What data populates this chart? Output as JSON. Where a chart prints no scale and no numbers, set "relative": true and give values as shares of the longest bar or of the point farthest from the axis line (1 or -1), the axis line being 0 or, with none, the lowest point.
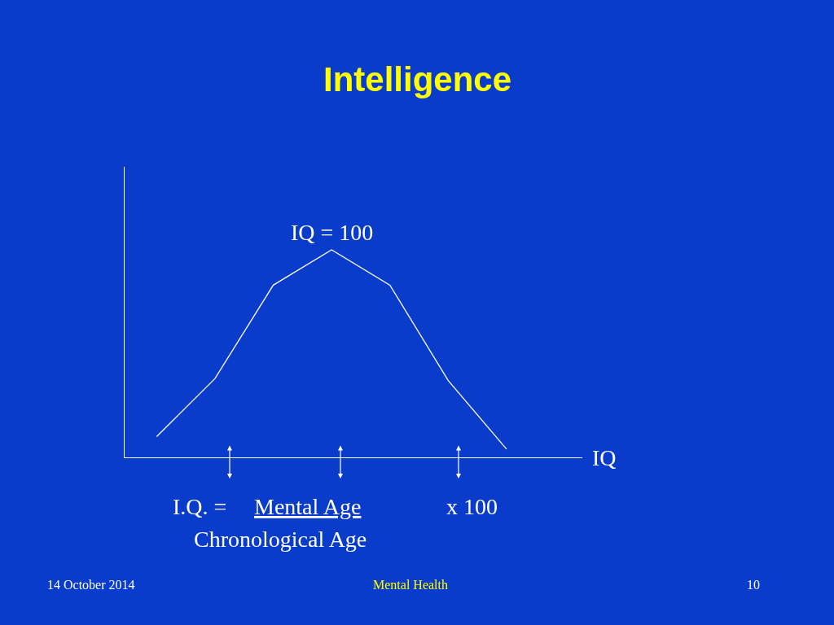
{
  "chart_data": {
    "type": "line",
    "title": "Intelligence",
    "xlabel": "IQ",
    "categories": [
      null,
      null,
      null,
      null,
      null,
      null,
      null
    ],
    "series": [
      {
        "color": "#ffffff",
        "values": [
          0.1,
          0.38,
          0.83,
          1,
          0.83,
          0.37,
          0.04
        ]
      }
    ],
    "relative": true,
    "grid": false,
    "marker": "none",
    "line_style": "solid",
    "annotations": [
      {
        "text": "IQ = 100",
        "y": 1
      },
      "I.Q. =",
      "Mental Age",
      "x 100",
      "Chronological Age",
      "14 October 2014",
      "Mental Health",
      "10"
    ]
  }
}
